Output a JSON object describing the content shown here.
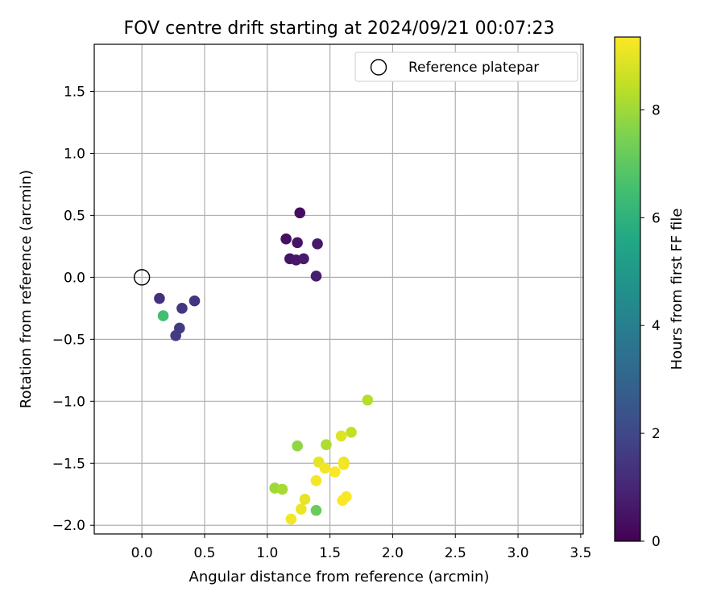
{
  "chart_data": {
    "type": "scatter",
    "title": "FOV centre drift starting at 2024/09/21 00:07:23",
    "xlabel": "Angular distance from reference (arcmin)",
    "ylabel": "Rotation from reference (arcmin)",
    "xlim": [
      -0.38,
      3.52
    ],
    "ylim": [
      -2.07,
      1.88
    ],
    "xticks": [
      "0.0",
      "0.5",
      "1.0",
      "1.5",
      "2.0",
      "2.5",
      "3.0",
      "3.5"
    ],
    "xtick_values": [
      0.0,
      0.5,
      1.0,
      1.5,
      2.0,
      2.5,
      3.0,
      3.5
    ],
    "yticks": [
      "1.5",
      "1.0",
      "0.5",
      "0.0",
      "−0.5",
      "−1.0",
      "−1.5",
      "−2.0"
    ],
    "ytick_values": [
      1.5,
      1.0,
      0.5,
      0.0,
      -0.5,
      -1.0,
      -1.5,
      -2.0
    ],
    "grid": true,
    "legend": {
      "position": "top-right",
      "entries": [
        {
          "label": "Reference platepar",
          "marker": "open-circle"
        }
      ]
    },
    "reference_point": {
      "x": 0.0,
      "y": 0.0
    },
    "colorbar": {
      "label": "Hours from first FF file",
      "colormap": "viridis",
      "range": [
        0,
        9.35
      ],
      "ticks": [
        "0",
        "2",
        "4",
        "6",
        "8"
      ],
      "tick_values": [
        0,
        2,
        4,
        6,
        8
      ]
    },
    "points": [
      {
        "x": 1.26,
        "y": 0.52,
        "hours": 0.3
      },
      {
        "x": 1.15,
        "y": 0.31,
        "hours": 0.4
      },
      {
        "x": 1.24,
        "y": 0.28,
        "hours": 0.5
      },
      {
        "x": 1.4,
        "y": 0.27,
        "hours": 0.6
      },
      {
        "x": 1.18,
        "y": 0.15,
        "hours": 0.5
      },
      {
        "x": 1.23,
        "y": 0.14,
        "hours": 0.6
      },
      {
        "x": 1.29,
        "y": 0.15,
        "hours": 0.7
      },
      {
        "x": 1.39,
        "y": 0.01,
        "hours": 0.8
      },
      {
        "x": 0.14,
        "y": -0.17,
        "hours": 1.3
      },
      {
        "x": 0.42,
        "y": -0.19,
        "hours": 1.4
      },
      {
        "x": 0.32,
        "y": -0.25,
        "hours": 1.5
      },
      {
        "x": 0.3,
        "y": -0.41,
        "hours": 1.6
      },
      {
        "x": 0.27,
        "y": -0.47,
        "hours": 1.6
      },
      {
        "x": 0.17,
        "y": -0.31,
        "hours": 6.5
      },
      {
        "x": 1.8,
        "y": -0.99,
        "hours": 8.3
      },
      {
        "x": 1.67,
        "y": -1.25,
        "hours": 8.5
      },
      {
        "x": 1.59,
        "y": -1.28,
        "hours": 8.9
      },
      {
        "x": 1.47,
        "y": -1.35,
        "hours": 8.2
      },
      {
        "x": 1.24,
        "y": -1.36,
        "hours": 7.8
      },
      {
        "x": 1.41,
        "y": -1.49,
        "hours": 9.0
      },
      {
        "x": 1.61,
        "y": -1.49,
        "hours": 9.1
      },
      {
        "x": 1.61,
        "y": -1.51,
        "hours": 9.2
      },
      {
        "x": 1.46,
        "y": -1.54,
        "hours": 9.2
      },
      {
        "x": 1.54,
        "y": -1.57,
        "hours": 9.3
      },
      {
        "x": 1.39,
        "y": -1.64,
        "hours": 9.2
      },
      {
        "x": 1.06,
        "y": -1.7,
        "hours": 8.0
      },
      {
        "x": 1.12,
        "y": -1.71,
        "hours": 8.1
      },
      {
        "x": 1.3,
        "y": -1.79,
        "hours": 9.0
      },
      {
        "x": 1.63,
        "y": -1.77,
        "hours": 9.3
      },
      {
        "x": 1.6,
        "y": -1.8,
        "hours": 9.3
      },
      {
        "x": 1.27,
        "y": -1.87,
        "hours": 9.1
      },
      {
        "x": 1.39,
        "y": -1.88,
        "hours": 7.2
      },
      {
        "x": 1.19,
        "y": -1.95,
        "hours": 9.2
      }
    ]
  }
}
